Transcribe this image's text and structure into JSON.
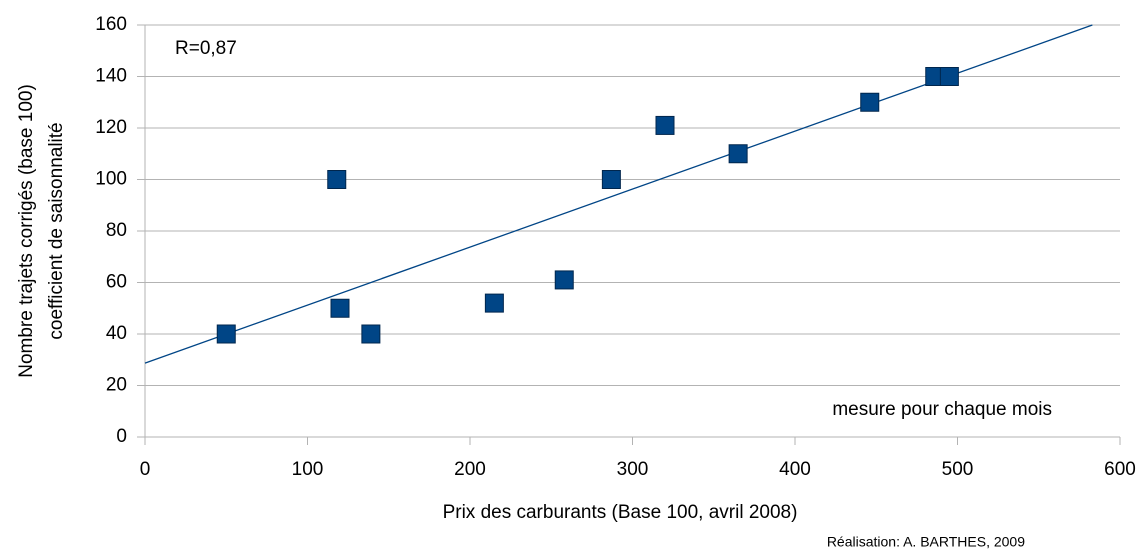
{
  "chart_data": {
    "type": "scatter",
    "y_label": [
      "Nombre trajets corrigés (base 100)",
      "coefficient de saisonnalité"
    ],
    "x_label": "Prix des carburants (Base 100, avril 2008)",
    "annotations": [
      "R=0,87",
      "mesure pour chaque mois"
    ],
    "credit": "Réalisation: A. BARTHES, 2009",
    "series": [
      {
        "color": "#004586",
        "x": [
          50,
          118,
          120,
          139,
          215,
          258,
          287,
          320,
          365,
          446,
          486,
          495
        ],
        "values": [
          40,
          100,
          50,
          40,
          52,
          61,
          100,
          121,
          110,
          130,
          140,
          140
        ]
      }
    ],
    "trendline": {
      "color": "#004586",
      "x": [
        0,
        583
      ],
      "values": [
        28.7,
        160
      ]
    },
    "xlim": [
      0,
      600
    ],
    "xticks": [
      0,
      100,
      200,
      300,
      400,
      500,
      600
    ],
    "ylim": [
      0,
      160
    ],
    "yticks": [
      0,
      20,
      40,
      60,
      80,
      100,
      120,
      140,
      160
    ],
    "grid": true
  }
}
